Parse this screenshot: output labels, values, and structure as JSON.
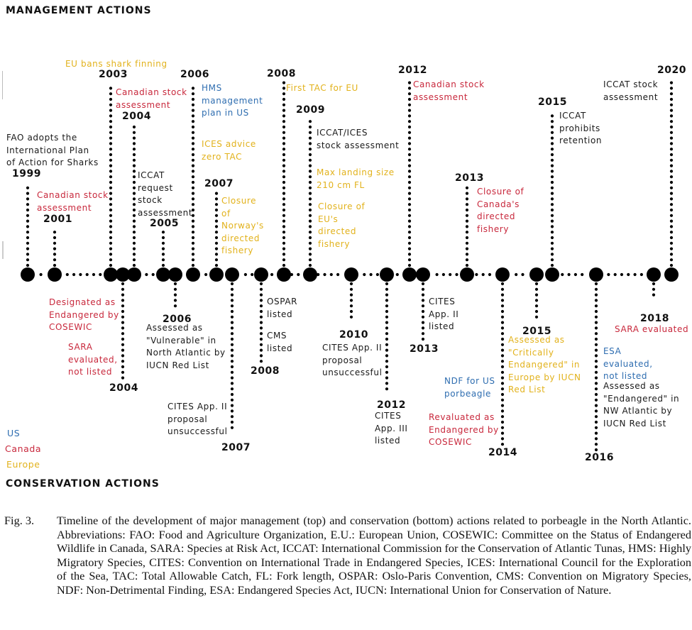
{
  "titles": {
    "management": "MANAGEMENT ACTIONS",
    "conservation": "CONSERVATION ACTIONS"
  },
  "legend": [
    {
      "label": "US",
      "region": "us"
    },
    {
      "label": "Canada",
      "region": "canada"
    },
    {
      "label": "Europe",
      "region": "europe"
    }
  ],
  "colors": {
    "us": "#2e6db0",
    "canada": "#c8283c",
    "europe": "#e2b21c",
    "international": "#1a1a1a",
    "line": "#000000"
  },
  "management": [
    {
      "id": "m1999",
      "year": "1999",
      "region": "international",
      "lines": [
        "FAO adopts the",
        "International Plan",
        "of Action for Sharks"
      ]
    },
    {
      "id": "m2001",
      "year": "2001",
      "region": "canada",
      "lines": [
        "Canadian stock",
        "assessment"
      ]
    },
    {
      "id": "m2003",
      "year": "2003",
      "region": "europe",
      "lines": [
        "EU bans shark finning"
      ]
    },
    {
      "id": "m2003b",
      "year": "",
      "region": "canada",
      "lines": [
        "Canadian stock",
        "assessment"
      ]
    },
    {
      "id": "m2004",
      "year": "2004",
      "region": "international",
      "lines": [
        "ICCAT",
        "request",
        "stock",
        "assessment"
      ]
    },
    {
      "id": "m2005",
      "year": "2005",
      "region": "international",
      "lines": []
    },
    {
      "id": "m2006",
      "year": "2006",
      "region": "us",
      "lines": [
        "HMS",
        "management",
        "plan in US"
      ]
    },
    {
      "id": "m2006b",
      "year": "",
      "region": "europe",
      "lines": [
        "ICES advice",
        "zero TAC"
      ]
    },
    {
      "id": "m2007",
      "year": "2007",
      "region": "europe",
      "lines": [
        "Closure",
        "of",
        "Norway's",
        "directed",
        "fishery"
      ]
    },
    {
      "id": "m2008",
      "year": "2008",
      "region": "europe",
      "lines": [
        "First TAC for EU"
      ]
    },
    {
      "id": "m2009",
      "year": "2009",
      "region": "international",
      "lines": [
        "ICCAT/ICES",
        "stock assessment"
      ]
    },
    {
      "id": "m2009b",
      "year": "",
      "region": "europe",
      "lines": [
        "Max landing size",
        "210 cm FL"
      ]
    },
    {
      "id": "m2009c",
      "year": "",
      "region": "europe",
      "lines": [
        "Closure of",
        "EU's",
        "directed",
        "fishery"
      ]
    },
    {
      "id": "m2012",
      "year": "2012",
      "region": "canada",
      "lines": [
        "Canadian stock",
        "assessment"
      ]
    },
    {
      "id": "m2013",
      "year": "2013",
      "region": "canada",
      "lines": [
        "Closure of",
        "Canada's",
        "directed",
        "fishery"
      ]
    },
    {
      "id": "m2015",
      "year": "2015",
      "region": "international",
      "lines": [
        "ICCAT",
        "prohibits",
        "retention"
      ]
    },
    {
      "id": "m2020",
      "year": "2020",
      "region": "international",
      "lines": [
        "ICCAT stock",
        "assessment"
      ]
    }
  ],
  "conservation": [
    {
      "id": "c2004",
      "year": "2004",
      "region": "canada",
      "lines": [
        "Designated as",
        "Endangered by",
        "COSEWIC"
      ]
    },
    {
      "id": "c2004b",
      "year": "",
      "region": "canada",
      "lines": [
        "SARA",
        "evaluated,",
        "not listed"
      ]
    },
    {
      "id": "c2006",
      "year": "2006",
      "region": "international",
      "lines": [
        "Assessed as",
        "\"Vulnerable\" in",
        "North Atlantic by",
        "IUCN Red List"
      ]
    },
    {
      "id": "c2007",
      "year": "2007",
      "region": "international",
      "lines": [
        "CITES App. II",
        "proposal",
        "unsuccessful"
      ]
    },
    {
      "id": "c2008",
      "year": "2008",
      "region": "international",
      "lines": [
        "OSPAR",
        "listed"
      ]
    },
    {
      "id": "c2008b",
      "year": "",
      "region": "international",
      "lines": [
        "CMS",
        "listed"
      ]
    },
    {
      "id": "c2010",
      "year": "2010",
      "region": "international",
      "lines": [
        "CITES App. II",
        "proposal",
        "unsuccessful"
      ]
    },
    {
      "id": "c2012",
      "year": "2012",
      "region": "international",
      "lines": [
        "CITES",
        "App. III",
        "listed"
      ]
    },
    {
      "id": "c2013",
      "year": "2013",
      "region": "international",
      "lines": [
        "CITES",
        "App. II",
        "listed"
      ]
    },
    {
      "id": "c2014",
      "year": "2014",
      "region": "us",
      "lines": [
        "NDF for US",
        "porbeagle"
      ]
    },
    {
      "id": "c2014b",
      "year": "",
      "region": "canada",
      "lines": [
        "Revaluated as",
        "Endangered by",
        "COSEWIC"
      ]
    },
    {
      "id": "c2015",
      "year": "2015",
      "region": "europe",
      "lines": [
        "Assessed as",
        "\"Critically",
        "Endangered\" in",
        "Europe by IUCN",
        "Red List"
      ]
    },
    {
      "id": "c2016",
      "year": "2016",
      "region": "us",
      "lines": [
        "ESA",
        "evaluated,",
        "not listed"
      ]
    },
    {
      "id": "c2016b",
      "year": "",
      "region": "international",
      "lines": [
        "Assessed as",
        "\"Endangered\" in",
        "NW Atlantic by",
        "IUCN Red List"
      ]
    },
    {
      "id": "c2018",
      "year": "2018",
      "region": "canada",
      "lines": [
        "SARA evaluated"
      ]
    }
  ],
  "caption": {
    "label": "Fig. 3.",
    "text": "Timeline of the development of major management (top) and conservation (bottom) actions related to porbeagle in the North Atlantic. Abbreviations: FAO: Food and Agriculture Organization, E.U.: European Union, COSEWIC: Committee on the Status of Endangered Wildlife in Canada, SARA: Species at Risk Act, ICCAT: International Commission for the Conservation of Atlantic Tunas, HMS: Highly Migratory Species, CITES: Convention on International Trade in Endangered Species, ICES: International Council for the Exploration of the Sea, TAC: Total Allowable Catch, FL: Fork length, OSPAR: Oslo-Paris Convention, CMS: Convention on Migratory Species, NDF: Non-Detrimental Finding, ESA: Endangered Species Act, IUCN: International Union for Conservation of Nature."
  }
}
